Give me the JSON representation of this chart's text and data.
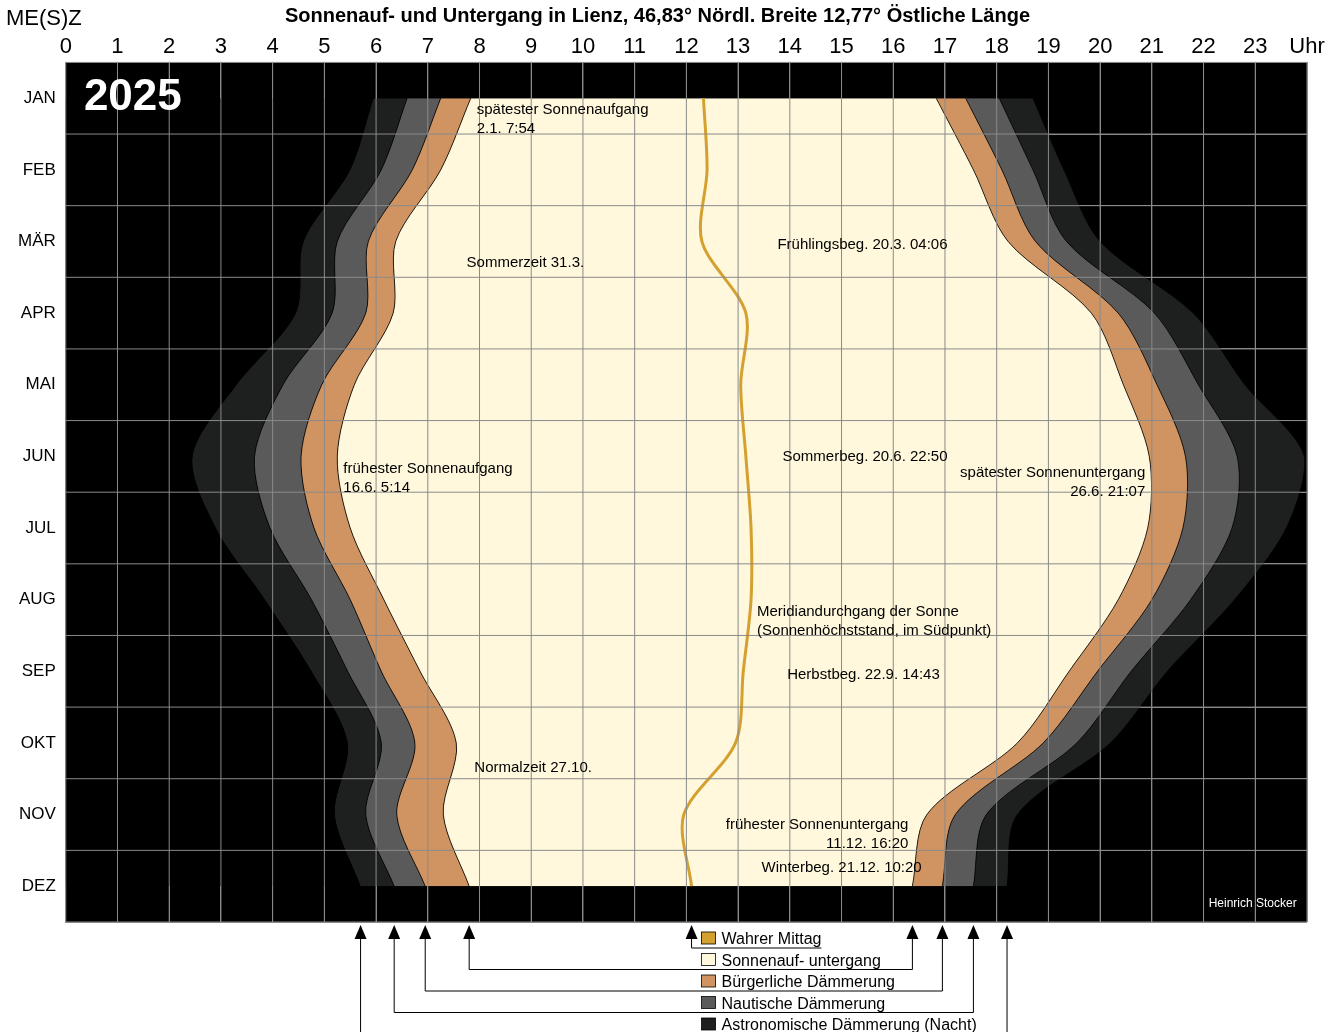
{
  "chart_data": {
    "type": "area",
    "orientation": "horizontal",
    "stacked": true,
    "title": "Sonnenauf- und Untergang in Lienz, 46,83° Nördl. Breite 12,77° Östliche Länge",
    "xlabel": "ME(S)Z",
    "categories": [
      "JAN",
      "FEB",
      "MÄR",
      "APR",
      "MAI",
      "JUN",
      "JUL",
      "AUG",
      "SEP",
      "OKT",
      "NOV",
      "DEZ"
    ],
    "xlim": [
      0,
      24
    ],
    "xticks": [
      0,
      1,
      2,
      3,
      4,
      5,
      6,
      7,
      8,
      9,
      10,
      11,
      12,
      13,
      14,
      15,
      16,
      17,
      18,
      19,
      20,
      21,
      22,
      23,
      {
        "value": 24,
        "label": "Uhr"
      }
    ],
    "grid": true,
    "legend": "bottom",
    "series": [
      {
        "color": "#000000",
        "values": [
          5.95,
          5.5,
          4.6,
          4.45,
          3.3,
          2.45,
          2.9,
          3.85,
          4.75,
          5.45,
          5.2,
          5.7
        ]
      },
      {
        "name": "Astronomische Dämmerung (Nacht)",
        "color": "#1e1f1f",
        "values": [
          0.65,
          0.6,
          0.65,
          0.7,
          0.9,
          1.2,
          1.05,
          0.9,
          0.7,
          0.65,
          0.6,
          0.65
        ]
      },
      {
        "name": "Nautische Dämmerung",
        "color": "#5a5a5a",
        "values": [
          0.65,
          0.6,
          0.6,
          0.65,
          0.75,
          0.9,
          0.85,
          0.75,
          0.65,
          0.65,
          0.6,
          0.6
        ]
      },
      {
        "name": "Bürgerliche Dämmerung",
        "color": "#d09462",
        "values": [
          0.58,
          0.55,
          0.53,
          0.53,
          0.63,
          0.7,
          0.7,
          0.65,
          0.75,
          0.8,
          0.9,
          0.85
        ]
      },
      {
        "name": "Sonnenauf- untergang",
        "color": "#fff8dc",
        "values": [
          9.0,
          10.3,
          11.84,
          13.5,
          14.87,
          15.7,
          15.42,
          14.2,
          12.55,
          10.85,
          9.35,
          8.57
        ]
      },
      {
        "color": "#d09462",
        "values": [
          0.57,
          0.55,
          0.53,
          0.52,
          0.65,
          0.7,
          0.68,
          0.65,
          0.55,
          0.5,
          0.55,
          0.58
        ]
      },
      {
        "color": "#5a5a5a",
        "values": [
          0.65,
          0.6,
          0.6,
          0.7,
          0.8,
          1.0,
          0.95,
          0.75,
          0.65,
          0.65,
          0.6,
          0.6
        ]
      },
      {
        "color": "#1e1f1f",
        "values": [
          0.65,
          0.6,
          0.65,
          0.75,
          0.9,
          1.3,
          1.05,
          0.85,
          0.7,
          0.65,
          0.6,
          0.65
        ]
      },
      {
        "name": "Wahrer Mittag",
        "color": "#d4a030",
        "type": "line",
        "values": [
          12.33,
          12.4,
          12.3,
          13.15,
          13.05,
          13.15,
          13.25,
          13.25,
          13.1,
          12.95,
          11.95,
          12.1
        ]
      }
    ],
    "annotations": [
      "2025",
      {
        "text": "spätester Sonnenaufgang\n2.1. 7:54",
        "x": 7.83,
        "y": "JAN"
      },
      "Frühlingsbeg. 20.3. 04:06",
      "Sommerzeit 31.3.",
      {
        "text": "frühester Sonnenaufgang\n16.6. 5:14",
        "x": 5.25,
        "y": "JUN"
      },
      "Sommerbeg. 20.6. 22:50",
      {
        "text": "spätester Sonnenuntergang\n26.6. 21:07",
        "x": 20.95,
        "y": "JUN"
      },
      {
        "text": "Meridiandurchgang der Sonne\n(Sonnenhöchststand, im Südpunkt)",
        "x": 13.25,
        "y": "AUG"
      },
      "Herbstbeg. 22.9. 14:43",
      "Normalzeit 27.10.",
      {
        "text": "frühester Sonnenuntergang\n11.12. 16:20",
        "x": 16.37,
        "y": "DEZ"
      },
      "Winterbeg. 21.12. 10:20",
      "Heinrich Stocker"
    ]
  }
}
